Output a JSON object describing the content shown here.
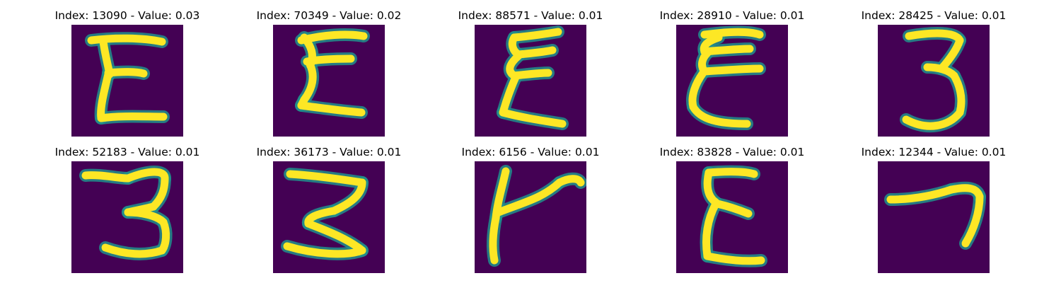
{
  "figure": {
    "panels": [
      {
        "title": "Index: 13090 - Value: 0.03",
        "index": 13090,
        "value": 0.03,
        "glyph": "E-shape"
      },
      {
        "title": "Index: 70349 - Value: 0.02",
        "index": 70349,
        "value": 0.02,
        "glyph": "E-shape"
      },
      {
        "title": "Index: 88571 - Value: 0.01",
        "index": 88571,
        "value": 0.01,
        "glyph": "E-shape"
      },
      {
        "title": "Index: 28910 - Value: 0.01",
        "index": 28910,
        "value": 0.01,
        "glyph": "E-shape"
      },
      {
        "title": "Index: 28425 - Value: 0.01",
        "index": 28425,
        "value": 0.01,
        "glyph": "3-shape"
      },
      {
        "title": "Index: 52183 - Value: 0.01",
        "index": 52183,
        "value": 0.01,
        "glyph": "3-shape"
      },
      {
        "title": "Index: 36173 - Value: 0.01",
        "index": 36173,
        "value": 0.01,
        "glyph": "3-shape"
      },
      {
        "title": "Index: 6156 - Value: 0.01",
        "index": 6156,
        "value": 0.01,
        "glyph": "k-shape"
      },
      {
        "title": "Index: 83828 - Value: 0.01",
        "index": 83828,
        "value": 0.01,
        "glyph": "E-shape"
      },
      {
        "title": "Index: 12344 - Value: 0.01",
        "index": 12344,
        "value": 0.01,
        "glyph": "7-shape"
      }
    ],
    "colors": {
      "background": "#440154",
      "stroke": "#fde725",
      "edge": "#21918c"
    }
  }
}
